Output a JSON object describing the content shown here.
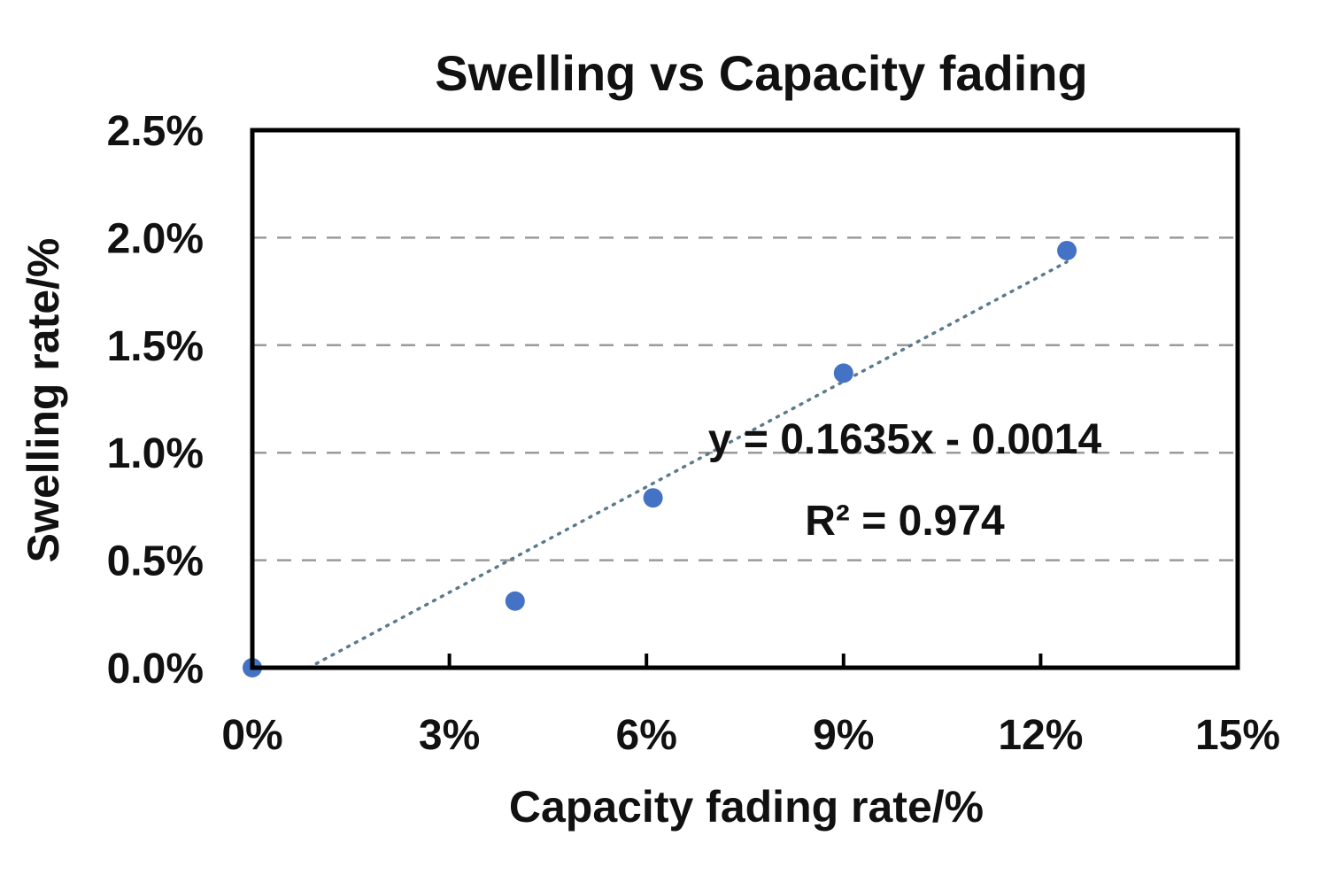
{
  "chart_data": {
    "type": "scatter",
    "title": "Swelling vs Capacity fading",
    "xlabel": "Capacity fading rate/%",
    "ylabel": "Swelling rate/%",
    "xlim": [
      0,
      15
    ],
    "ylim": [
      0,
      2.5
    ],
    "x_ticks": [
      0,
      3,
      6,
      9,
      12,
      15
    ],
    "x_tick_labels": [
      "0%",
      "3%",
      "6%",
      "9%",
      "12%",
      "15%"
    ],
    "y_ticks": [
      0,
      0.5,
      1.0,
      1.5,
      2.0,
      2.5
    ],
    "y_tick_labels": [
      "0.0%",
      "0.5%",
      "1.0%",
      "1.5%",
      "2.0%",
      "2.5%"
    ],
    "grid": "horizontal dashed",
    "series": [
      {
        "name": "Swelling rate",
        "x": [
          0,
          4.0,
          6.1,
          9.0,
          12.4
        ],
        "y": [
          0,
          0.31,
          0.79,
          1.37,
          1.94
        ],
        "color": "#4472C4"
      }
    ],
    "trendline": {
      "type": "linear",
      "slope": 0.1635,
      "intercept_percent": -0.14,
      "x_end": 12.4,
      "color": "#5B7B8C"
    },
    "annotations": {
      "equation": "y = 0.1635x - 0.0014",
      "r_squared": "R² = 0.974"
    }
  }
}
